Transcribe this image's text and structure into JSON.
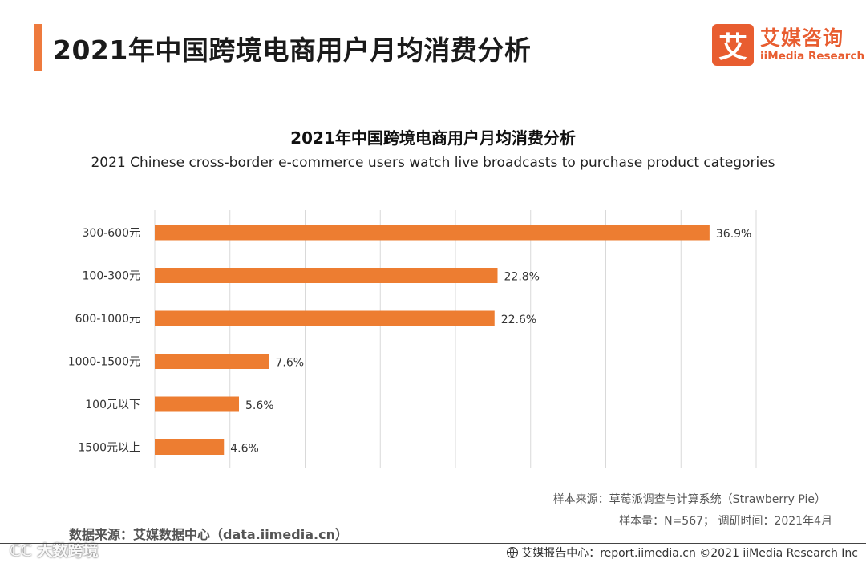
{
  "header": {
    "title": "2021年中国跨境电商用户月均消费分析"
  },
  "logo": {
    "mark": "艾",
    "name_cn": "艾媒咨询",
    "name_en": "iiMedia Research"
  },
  "colors": {
    "accent": "#ee7a3d",
    "bar": "#ed7d31",
    "grid": "#d9d9d9"
  },
  "chart_data": {
    "type": "bar",
    "orientation": "horizontal",
    "title": "2021年中国跨境电商用户月均消费分析",
    "subtitle": "2021 Chinese cross-border e-commerce users watch live broadcasts to purchase product categories",
    "categories": [
      "300-600元",
      "100-300元",
      "600-1000元",
      "1000-1500元",
      "100元以下",
      "1500元以上"
    ],
    "values": [
      36.9,
      22.8,
      22.6,
      7.6,
      5.6,
      4.6
    ],
    "value_labels": [
      "36.9%",
      "22.8%",
      "22.6%",
      "7.6%",
      "5.6%",
      "4.6%"
    ],
    "unit": "%",
    "xlim": [
      0,
      40
    ],
    "grid": true,
    "xlabel": "",
    "ylabel": ""
  },
  "footer": {
    "source_right": "样本来源：草莓派调查与计算系统（Strawberry Pie）",
    "sample": "样本量：N=567； 调研时间：2021年4月",
    "data_source": "数据来源：艾媒数据中心（data.iimedia.cn）",
    "watermark": "ℂℂ 大数跨境",
    "report": "艾媒报告中心：report.iimedia.cn   ©2021  iiMedia Research  Inc"
  }
}
